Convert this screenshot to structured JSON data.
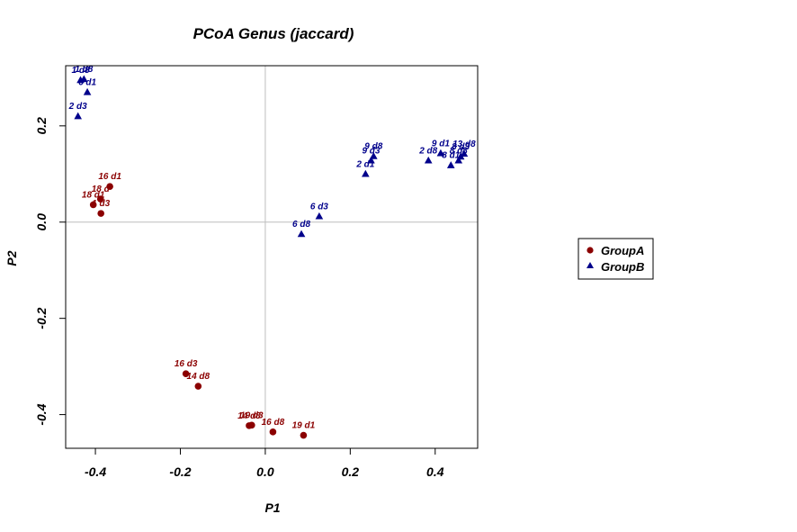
{
  "chart_data": {
    "type": "scatter",
    "title": "PCoA Genus (jaccard)",
    "xlabel": "P1",
    "ylabel": "P2",
    "xlim": [
      -0.47,
      0.5
    ],
    "ylim": [
      -0.47,
      0.325
    ],
    "xticks": [
      -0.4,
      -0.2,
      0.0,
      0.2,
      0.4
    ],
    "yticks": [
      -0.4,
      -0.2,
      0.0,
      0.2
    ],
    "xtick_labels": [
      "-0.4",
      "-0.2",
      "0.0",
      "0.2",
      "0.4"
    ],
    "ytick_labels": [
      "-0.4",
      "-0.2",
      "0.0",
      "0.2"
    ],
    "reference_lines": {
      "x": 0,
      "y": 0
    },
    "legend": {
      "placement": "right"
    },
    "series": [
      {
        "name": "GroupA",
        "marker": "circle",
        "color": "#8b0000",
        "points": [
          {
            "x": -0.366,
            "y": 0.074,
            "label": "16 d1"
          },
          {
            "x": -0.388,
            "y": 0.048,
            "label": "18 d"
          },
          {
            "x": -0.405,
            "y": 0.036,
            "label": "18 d1"
          },
          {
            "x": -0.387,
            "y": 0.018,
            "label": "1 d3"
          },
          {
            "x": -0.187,
            "y": -0.315,
            "label": "16 d3"
          },
          {
            "x": -0.158,
            "y": -0.341,
            "label": "14 d8"
          },
          {
            "x": -0.038,
            "y": -0.423,
            "label": "14 d8"
          },
          {
            "x": -0.032,
            "y": -0.422,
            "label": "19 d3"
          },
          {
            "x": 0.018,
            "y": -0.436,
            "label": "16 d8"
          },
          {
            "x": 0.09,
            "y": -0.443,
            "label": "19 d1"
          }
        ]
      },
      {
        "name": "GroupB",
        "marker": "triangle",
        "color": "#00008b",
        "points": [
          {
            "x": -0.435,
            "y": 0.295,
            "label": "1 d8"
          },
          {
            "x": -0.427,
            "y": 0.297,
            "label": "1 d8"
          },
          {
            "x": -0.419,
            "y": 0.27,
            "label": "6 d1"
          },
          {
            "x": -0.441,
            "y": 0.22,
            "label": "2 d3"
          },
          {
            "x": 0.236,
            "y": 0.1,
            "label": "2 d1"
          },
          {
            "x": 0.249,
            "y": 0.128,
            "label": "9 d3"
          },
          {
            "x": 0.255,
            "y": 0.137,
            "label": "9 d8"
          },
          {
            "x": 0.127,
            "y": 0.012,
            "label": "6 d3"
          },
          {
            "x": 0.085,
            "y": -0.025,
            "label": "6 d8"
          },
          {
            "x": 0.384,
            "y": 0.128,
            "label": "2 d8"
          },
          {
            "x": 0.413,
            "y": 0.143,
            "label": "9 d1"
          },
          {
            "x": 0.437,
            "y": 0.118,
            "label": "8 d1"
          },
          {
            "x": 0.455,
            "y": 0.128,
            "label": "8 d8"
          },
          {
            "x": 0.46,
            "y": 0.136,
            "label": "8 d3"
          },
          {
            "x": 0.468,
            "y": 0.142,
            "label": "13 d8"
          }
        ]
      }
    ]
  }
}
